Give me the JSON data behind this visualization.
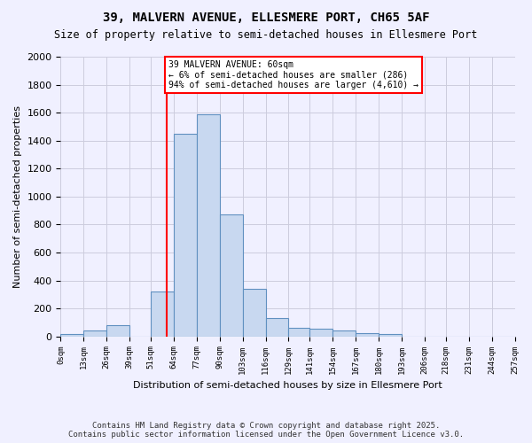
{
  "title1": "39, MALVERN AVENUE, ELLESMERE PORT, CH65 5AF",
  "title2": "Size of property relative to semi-detached houses in Ellesmere Port",
  "xlabel": "Distribution of semi-detached houses by size in Ellesmere Port",
  "ylabel": "Number of semi-detached properties",
  "bin_labels": [
    "0sqm",
    "13sqm",
    "26sqm",
    "39sqm",
    "51sqm",
    "64sqm",
    "77sqm",
    "90sqm",
    "103sqm",
    "116sqm",
    "129sqm",
    "141sqm",
    "154sqm",
    "167sqm",
    "180sqm",
    "193sqm",
    "206sqm",
    "218sqm",
    "231sqm",
    "244sqm",
    "257sqm"
  ],
  "bin_edges": [
    0,
    13,
    26,
    39,
    51,
    64,
    77,
    90,
    103,
    116,
    129,
    141,
    154,
    167,
    180,
    193,
    206,
    218,
    231,
    244,
    257
  ],
  "bar_heights": [
    20,
    40,
    80,
    0,
    320,
    1450,
    1590,
    870,
    340,
    130,
    60,
    55,
    40,
    25,
    15,
    0,
    0,
    0,
    0,
    0
  ],
  "bar_color": "#c8d8f0",
  "bar_edge_color": "#6090c0",
  "property_size": 60,
  "vline_color": "red",
  "annotation_text": "39 MALVERN AVENUE: 60sqm\n← 6% of semi-detached houses are smaller (286)\n94% of semi-detached houses are larger (4,610) →",
  "annotation_box_color": "white",
  "annotation_box_edge": "red",
  "ylim": [
    0,
    2000
  ],
  "yticks": [
    0,
    200,
    400,
    600,
    800,
    1000,
    1200,
    1400,
    1600,
    1800,
    2000
  ],
  "footer1": "Contains HM Land Registry data © Crown copyright and database right 2025.",
  "footer2": "Contains public sector information licensed under the Open Government Licence v3.0.",
  "bg_color": "#f0f0ff",
  "grid_color": "#ccccdd"
}
